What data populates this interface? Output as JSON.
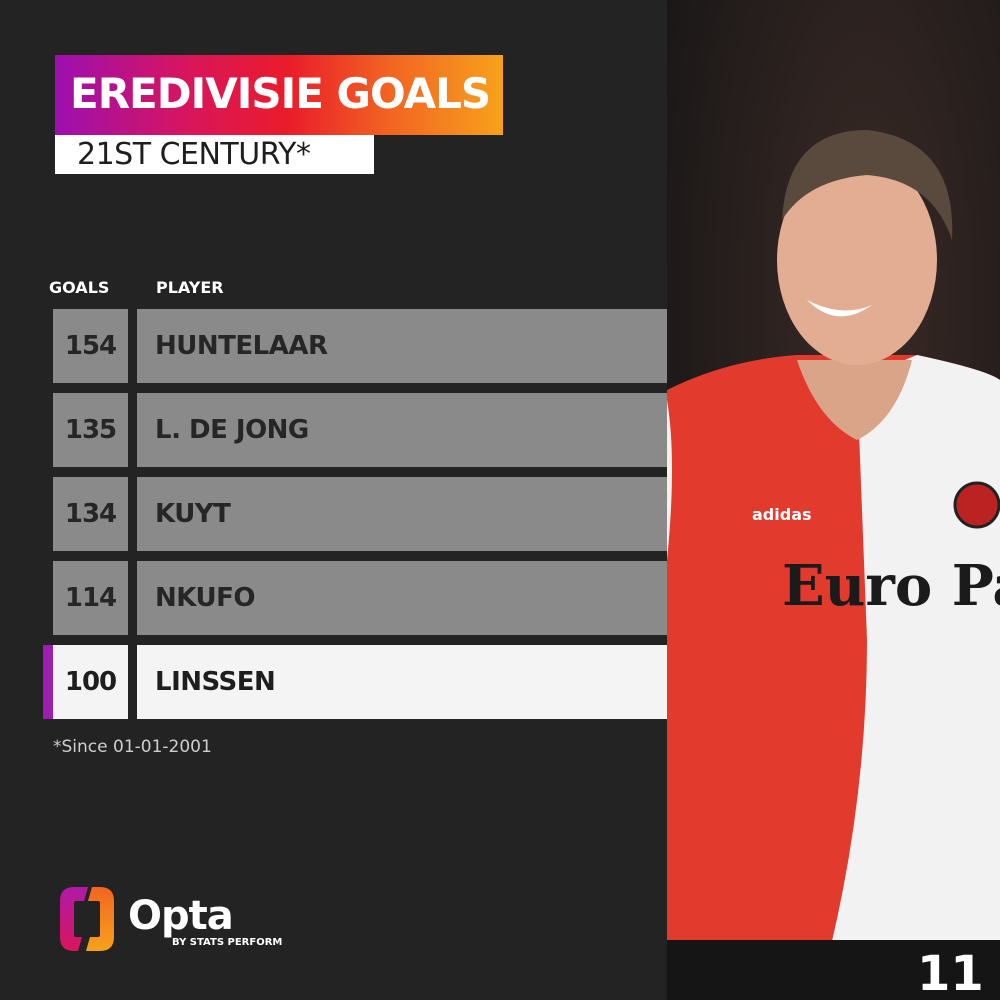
{
  "header": {
    "title": "EREDIVISIE GOALS",
    "subtitle": "21ST CENTURY*"
  },
  "chart_data": {
    "type": "table",
    "columns": [
      "GOALS",
      "PLAYER"
    ],
    "rows": [
      {
        "goals": "154",
        "player": "HUNTELAAR"
      },
      {
        "goals": "135",
        "player": "L. DE JONG"
      },
      {
        "goals": "134",
        "player": "KUYT"
      },
      {
        "goals": "114",
        "player": "NKUFO"
      },
      {
        "goals": "100",
        "player": "LINSSEN",
        "highlighted": true
      }
    ],
    "highlight_color": "#9d1fb0"
  },
  "footnote": "*Since 01-01-2001",
  "logo": {
    "name": "Opta",
    "tagline": "BY STATS PERFORM"
  },
  "photo": {
    "shirt_sponsor": "Euro Parcs",
    "kit_brand": "adidas",
    "shirt_number": "11"
  }
}
